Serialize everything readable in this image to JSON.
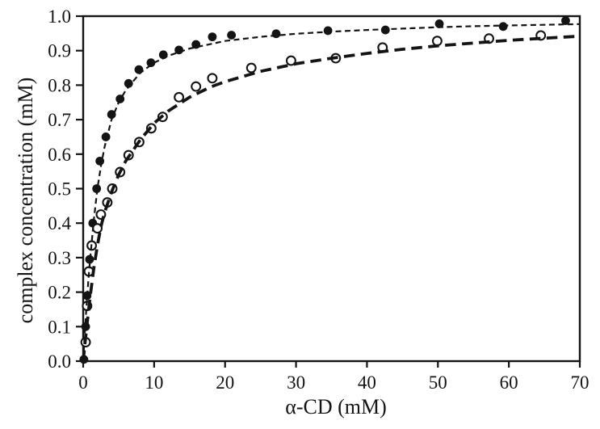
{
  "figure": {
    "background": "#ffffff",
    "ink_color": "#141414"
  },
  "chart_data": {
    "type": "scatter",
    "title": "",
    "xlabel": "α-CD (mM)",
    "ylabel": "complex concentration (mM)",
    "xlim": [
      0,
      70
    ],
    "ylim": [
      0.0,
      1.0
    ],
    "x_tick_values": [
      0,
      10,
      20,
      30,
      40,
      50,
      60,
      70
    ],
    "x_tick_labels": [
      "0",
      "10",
      "20",
      "30",
      "40",
      "50",
      "60",
      "70"
    ],
    "y_tick_values": [
      0.0,
      0.1,
      0.2,
      0.3,
      0.4,
      0.5,
      0.6,
      0.7,
      0.8,
      0.9,
      1.0
    ],
    "y_tick_labels": [
      "0.0",
      "0.1",
      "0.2",
      "0.3",
      "0.4",
      "0.5",
      "0.6",
      "0.7",
      "0.8",
      "0.9",
      "1.0"
    ],
    "grid": false,
    "legend": "none",
    "series": [
      {
        "name": "filled circles",
        "marker": "filled-circle",
        "fit_line_style": "short-dash-thin",
        "points": [
          [
            0.1,
            0.005
          ],
          [
            0.35,
            0.1
          ],
          [
            0.55,
            0.19
          ],
          [
            0.9,
            0.295
          ],
          [
            1.35,
            0.4
          ],
          [
            1.9,
            0.5
          ],
          [
            2.35,
            0.58
          ],
          [
            3.2,
            0.65
          ],
          [
            4.0,
            0.715
          ],
          [
            5.2,
            0.76
          ],
          [
            6.4,
            0.805
          ],
          [
            7.85,
            0.845
          ],
          [
            9.55,
            0.865
          ],
          [
            11.3,
            0.888
          ],
          [
            13.5,
            0.902
          ],
          [
            15.9,
            0.918
          ],
          [
            18.2,
            0.94
          ],
          [
            20.9,
            0.945
          ],
          [
            27.2,
            0.949
          ],
          [
            34.5,
            0.958
          ],
          [
            42.6,
            0.96
          ],
          [
            50.2,
            0.978
          ],
          [
            59.2,
            0.97
          ],
          [
            68.0,
            0.987
          ]
        ],
        "fit_samples": [
          [
            0,
            0
          ],
          [
            0.125,
            0.045
          ],
          [
            0.25,
            0.09
          ],
          [
            0.5,
            0.17
          ],
          [
            0.75,
            0.24
          ],
          [
            1,
            0.3
          ],
          [
            1.5,
            0.41
          ],
          [
            2,
            0.5
          ],
          [
            2.5,
            0.565
          ],
          [
            3,
            0.62
          ],
          [
            4,
            0.7
          ],
          [
            5,
            0.75
          ],
          [
            6,
            0.785
          ],
          [
            8,
            0.835
          ],
          [
            10,
            0.865
          ],
          [
            12,
            0.885
          ],
          [
            15,
            0.906
          ],
          [
            20,
            0.928
          ],
          [
            25,
            0.94
          ],
          [
            30,
            0.949
          ],
          [
            35,
            0.955
          ],
          [
            40,
            0.96
          ],
          [
            45,
            0.964
          ],
          [
            50,
            0.968
          ],
          [
            55,
            0.971
          ],
          [
            60,
            0.973
          ],
          [
            65,
            0.975
          ],
          [
            70,
            0.977
          ]
        ]
      },
      {
        "name": "open circles",
        "marker": "open-circle",
        "fit_line_style": "long-dash-thick",
        "points": [
          [
            0.35,
            0.055
          ],
          [
            0.55,
            0.16
          ],
          [
            0.8,
            0.26
          ],
          [
            1.2,
            0.335
          ],
          [
            2.0,
            0.385
          ],
          [
            2.5,
            0.425
          ],
          [
            3.4,
            0.46
          ],
          [
            4.1,
            0.5
          ],
          [
            5.2,
            0.548
          ],
          [
            6.4,
            0.597
          ],
          [
            7.9,
            0.635
          ],
          [
            9.6,
            0.675
          ],
          [
            11.2,
            0.708
          ],
          [
            13.5,
            0.765
          ],
          [
            15.9,
            0.796
          ],
          [
            18.2,
            0.82
          ],
          [
            23.7,
            0.85
          ],
          [
            29.3,
            0.871
          ],
          [
            35.6,
            0.878
          ],
          [
            42.2,
            0.909
          ],
          [
            49.9,
            0.928
          ],
          [
            57.2,
            0.935
          ],
          [
            64.5,
            0.944
          ]
        ],
        "fit_samples": [
          [
            0,
            0
          ],
          [
            0.25,
            0.05
          ],
          [
            0.5,
            0.1
          ],
          [
            1,
            0.19
          ],
          [
            1.5,
            0.27
          ],
          [
            2,
            0.335
          ],
          [
            2.5,
            0.39
          ],
          [
            3,
            0.43
          ],
          [
            4,
            0.49
          ],
          [
            5,
            0.54
          ],
          [
            6,
            0.58
          ],
          [
            8,
            0.64
          ],
          [
            10,
            0.69
          ],
          [
            12,
            0.725
          ],
          [
            15,
            0.765
          ],
          [
            18,
            0.795
          ],
          [
            20,
            0.81
          ],
          [
            25,
            0.84
          ],
          [
            30,
            0.862
          ],
          [
            35,
            0.878
          ],
          [
            40,
            0.892
          ],
          [
            45,
            0.904
          ],
          [
            50,
            0.914
          ],
          [
            55,
            0.922
          ],
          [
            60,
            0.93
          ],
          [
            65,
            0.936
          ],
          [
            70,
            0.942
          ]
        ]
      }
    ]
  }
}
